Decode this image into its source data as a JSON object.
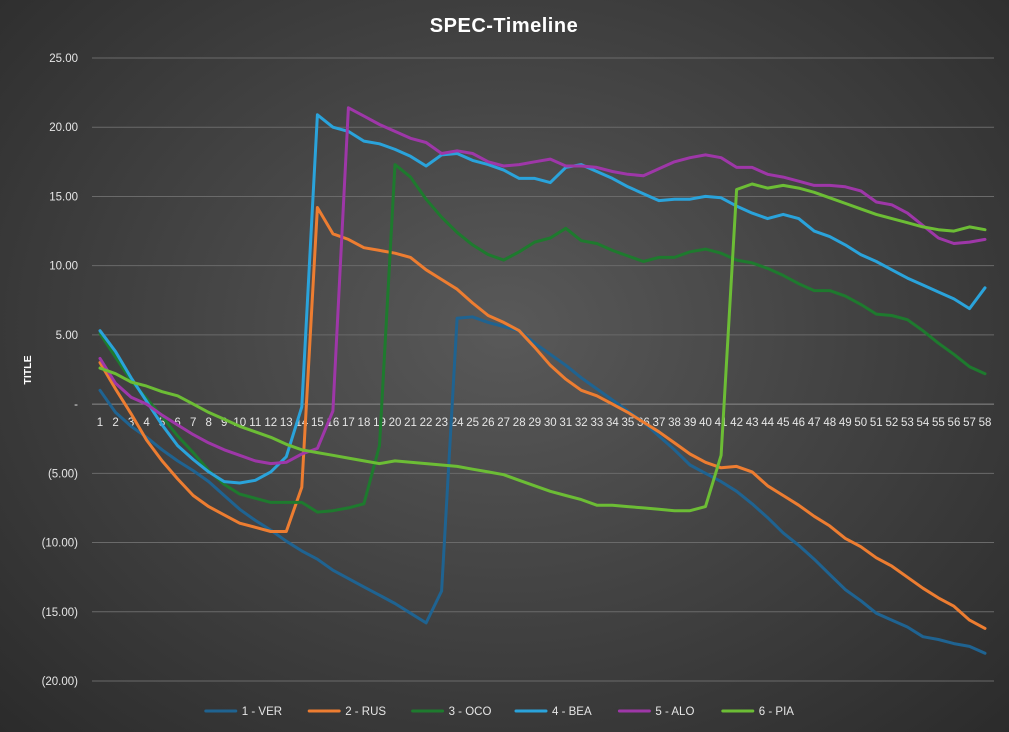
{
  "chart_data": {
    "type": "line",
    "title": "SPEC-Timeline",
    "xlabel": "",
    "ylabel": "TITLE",
    "ylim": [
      -20,
      25
    ],
    "y_ticks": [
      25,
      20,
      15,
      10,
      5,
      0,
      -5,
      -10,
      -15,
      -20
    ],
    "y_tick_labels": [
      "25.00",
      "20.00",
      "15.00",
      "10.00",
      "5.00",
      "-",
      "(5.00)",
      "(10.00)",
      "(15.00)",
      "(20.00)"
    ],
    "grid": true,
    "legend_position": "bottom",
    "categories": [
      "1",
      "2",
      "3",
      "4",
      "5",
      "6",
      "7",
      "8",
      "9",
      "10",
      "11",
      "12",
      "13",
      "14",
      "15",
      "16",
      "17",
      "18",
      "19",
      "20",
      "21",
      "22",
      "23",
      "24",
      "25",
      "26",
      "27",
      "28",
      "29",
      "30",
      "31",
      "32",
      "33",
      "34",
      "35",
      "36",
      "37",
      "38",
      "39",
      "40",
      "41",
      "42",
      "43",
      "44",
      "45",
      "46",
      "47",
      "48",
      "49",
      "50",
      "51",
      "52",
      "53",
      "54",
      "55",
      "56",
      "57",
      "58"
    ],
    "series": [
      {
        "name": "1 - VER",
        "color": "#1f6391",
        "values": [
          1.0,
          -0.6,
          -1.6,
          -2.4,
          -3.3,
          -4.1,
          -4.8,
          -5.6,
          -6.6,
          -7.6,
          -8.4,
          -9.1,
          -9.9,
          -10.6,
          -11.2,
          -12.0,
          -12.6,
          -13.2,
          -13.8,
          -14.4,
          -15.1,
          -15.8,
          -13.5,
          6.2,
          6.3,
          5.9,
          5.6,
          5.3,
          4.4,
          3.6,
          2.8,
          1.9,
          1.1,
          0.3,
          -0.5,
          -1.3,
          -2.3,
          -3.3,
          -4.4,
          -5.0,
          -5.6,
          -6.3,
          -7.2,
          -8.2,
          -9.3,
          -10.2,
          -11.2,
          -12.3,
          -13.4,
          -14.2,
          -15.1,
          -15.6,
          -16.1,
          -16.8,
          -17.0,
          -17.3,
          -17.5,
          -18.0
        ]
      },
      {
        "name": "2 - RUS",
        "color": "#ed7d31",
        "values": [
          3.0,
          1.1,
          -0.7,
          -2.6,
          -4.1,
          -5.4,
          -6.6,
          -7.4,
          -8.0,
          -8.6,
          -8.9,
          -9.2,
          -9.2,
          -6.0,
          14.2,
          12.3,
          11.9,
          11.3,
          11.1,
          10.9,
          10.6,
          9.7,
          9.0,
          8.3,
          7.3,
          6.4,
          5.9,
          5.3,
          4.1,
          2.8,
          1.8,
          1.0,
          0.6,
          0.0,
          -0.6,
          -1.3,
          -2.0,
          -2.8,
          -3.6,
          -4.2,
          -4.6,
          -4.5,
          -4.9,
          -5.9,
          -6.6,
          -7.3,
          -8.1,
          -8.8,
          -9.7,
          -10.3,
          -11.1,
          -11.7,
          -12.5,
          -13.3,
          -14.0,
          -14.6,
          -15.6,
          -16.2
        ]
      },
      {
        "name": "3 - OCO",
        "color": "#1e7a2e",
        "values": [
          5.1,
          3.4,
          1.7,
          0.4,
          -0.9,
          -2.3,
          -3.5,
          -4.8,
          -5.8,
          -6.5,
          -6.8,
          -7.1,
          -7.1,
          -7.1,
          -7.8,
          -7.7,
          -7.5,
          -7.2,
          -3.0,
          17.3,
          16.4,
          14.8,
          13.5,
          12.4,
          11.5,
          10.8,
          10.4,
          11.0,
          11.7,
          12.0,
          12.7,
          11.8,
          11.6,
          11.1,
          10.7,
          10.3,
          10.6,
          10.6,
          11.0,
          11.2,
          10.9,
          10.4,
          10.2,
          9.8,
          9.3,
          8.7,
          8.2,
          8.2,
          7.8,
          7.2,
          6.5,
          6.4,
          6.1,
          5.3,
          4.4,
          3.6,
          2.7,
          2.2
        ]
      },
      {
        "name": "4 - BEA",
        "color": "#2aa3db",
        "values": [
          5.3,
          3.8,
          1.9,
          0.2,
          -1.5,
          -3.0,
          -4.0,
          -4.9,
          -5.6,
          -5.7,
          -5.5,
          -4.9,
          -3.8,
          -0.2,
          20.9,
          20.0,
          19.7,
          19.0,
          18.8,
          18.4,
          17.9,
          17.2,
          18.0,
          18.1,
          17.6,
          17.3,
          16.9,
          16.3,
          16.3,
          16.0,
          17.1,
          17.3,
          16.8,
          16.3,
          15.7,
          15.2,
          14.7,
          14.8,
          14.8,
          15.0,
          14.9,
          14.3,
          13.8,
          13.4,
          13.7,
          13.4,
          12.5,
          12.1,
          11.5,
          10.8,
          10.3,
          9.7,
          9.1,
          8.6,
          8.1,
          7.6,
          6.9,
          8.4
        ]
      },
      {
        "name": "5 - ALO",
        "color": "#9e37a8",
        "values": [
          3.3,
          1.5,
          0.5,
          0.0,
          -0.8,
          -1.5,
          -2.2,
          -2.8,
          -3.3,
          -3.7,
          -4.1,
          -4.3,
          -4.2,
          -3.6,
          -3.2,
          -0.5,
          21.4,
          20.8,
          20.2,
          19.7,
          19.2,
          18.9,
          18.1,
          18.3,
          18.1,
          17.5,
          17.2,
          17.3,
          17.5,
          17.7,
          17.2,
          17.2,
          17.1,
          16.8,
          16.6,
          16.5,
          17.0,
          17.5,
          17.8,
          18.0,
          17.8,
          17.1,
          17.1,
          16.6,
          16.4,
          16.1,
          15.8,
          15.8,
          15.7,
          15.4,
          14.6,
          14.4,
          13.8,
          12.9,
          12.0,
          11.6,
          11.7,
          11.9
        ]
      },
      {
        "name": "6 - PIA",
        "color": "#6cbd35",
        "values": [
          2.6,
          2.2,
          1.6,
          1.3,
          0.9,
          0.6,
          0.0,
          -0.6,
          -1.1,
          -1.6,
          -2.0,
          -2.4,
          -2.9,
          -3.3,
          -3.5,
          -3.7,
          -3.9,
          -4.1,
          -4.3,
          -4.1,
          -4.2,
          -4.3,
          -4.4,
          -4.5,
          -4.7,
          -4.9,
          -5.1,
          -5.5,
          -5.9,
          -6.3,
          -6.6,
          -6.9,
          -7.3,
          -7.3,
          -7.4,
          -7.5,
          -7.6,
          -7.7,
          -7.7,
          -7.4,
          -3.7,
          15.5,
          15.9,
          15.6,
          15.8,
          15.6,
          15.3,
          14.9,
          14.5,
          14.1,
          13.7,
          13.4,
          13.1,
          12.8,
          12.6,
          12.5,
          12.8,
          12.6
        ]
      }
    ]
  }
}
